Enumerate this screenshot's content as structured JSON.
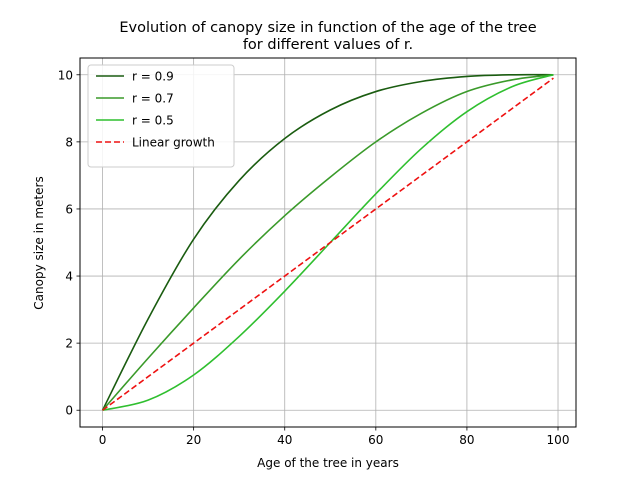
{
  "chart_data": {
    "type": "line",
    "title": [
      "Evolution of canopy size in function of the age of the tree",
      "for different values of r."
    ],
    "xlabel": "Age of the tree in years",
    "ylabel": "Canopy size in meters",
    "xlim": [
      -4.95,
      103.95
    ],
    "ylim": [
      -0.5,
      10.5
    ],
    "xticks": [
      0,
      20,
      40,
      60,
      80,
      100
    ],
    "yticks": [
      0,
      2,
      4,
      6,
      8,
      10
    ],
    "grid": true,
    "legend_position": "upper-left",
    "series": [
      {
        "name": "r = 0.9",
        "color": "#1a5c10",
        "style": "solid",
        "x": [
          0,
          10,
          20,
          30,
          40,
          50,
          60,
          70,
          80,
          90,
          99
        ],
        "y": [
          0,
          2.72,
          5.1,
          6.85,
          8.1,
          8.95,
          9.5,
          9.8,
          9.95,
          10.0,
          10.0
        ]
      },
      {
        "name": "r = 0.7",
        "color": "#3a9a2a",
        "style": "solid",
        "x": [
          0,
          10,
          20,
          30,
          40,
          50,
          60,
          70,
          80,
          90,
          99
        ],
        "y": [
          0,
          1.55,
          3.05,
          4.5,
          5.8,
          6.95,
          8.0,
          8.85,
          9.5,
          9.85,
          10.0
        ]
      },
      {
        "name": "r = 0.5",
        "color": "#2fbf2f",
        "style": "solid",
        "x": [
          0,
          10,
          20,
          30,
          40,
          50,
          60,
          70,
          80,
          90,
          99
        ],
        "y": [
          0,
          0.3,
          1.05,
          2.2,
          3.55,
          5.0,
          6.45,
          7.8,
          8.9,
          9.65,
          10.0
        ]
      },
      {
        "name": "Linear growth",
        "color": "#ee1111",
        "style": "dashed",
        "x": [
          0,
          99
        ],
        "y": [
          0,
          9.9
        ]
      }
    ]
  }
}
